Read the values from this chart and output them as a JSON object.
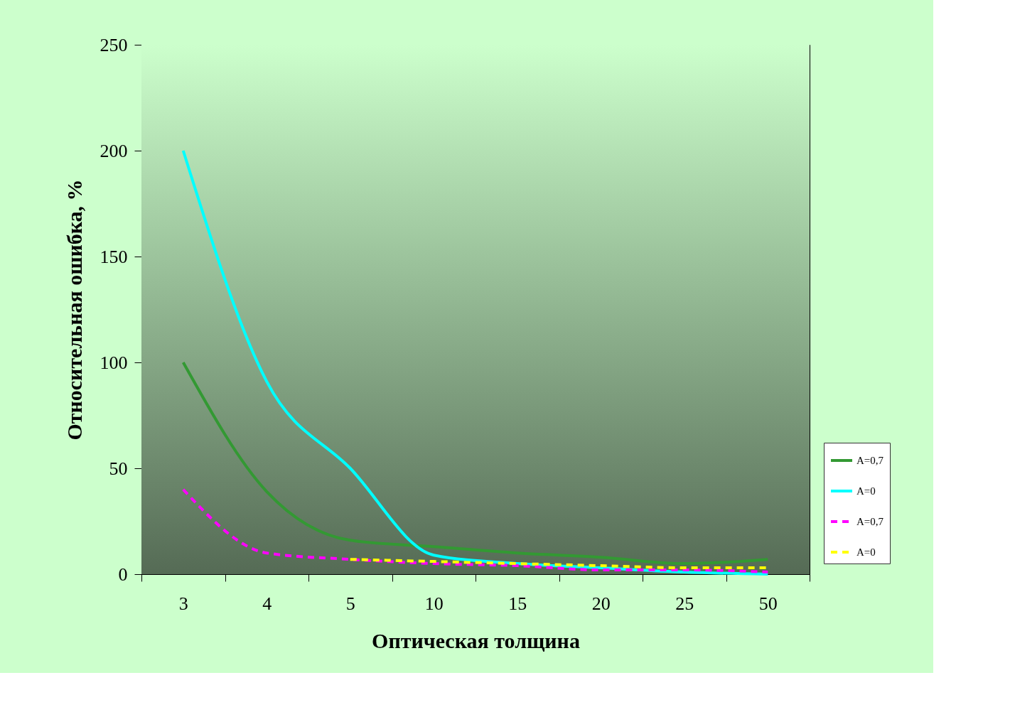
{
  "chart_data": {
    "type": "line",
    "xlabel": "Оптическая толщина",
    "ylabel": "Относительная ошибка, %",
    "categories": [
      "3",
      "4",
      "5",
      "10",
      "15",
      "20",
      "25",
      "50"
    ],
    "ylim": [
      0,
      250
    ],
    "yticks": [
      0,
      50,
      100,
      150,
      200,
      250
    ],
    "grid": false,
    "legend": "right",
    "marker": "none",
    "series": [
      {
        "name": "A=0,7",
        "color": "#339933",
        "line_style": "solid",
        "values": [
          100,
          39,
          16,
          13,
          10,
          8,
          5,
          7
        ]
      },
      {
        "name": "A=0",
        "color": "#00ffff",
        "line_style": "solid",
        "values": [
          200,
          91,
          50,
          9,
          5,
          3,
          1,
          0
        ]
      },
      {
        "name": "A=0,7",
        "color": "#ff00ff",
        "line_style": "dashed",
        "values": [
          40,
          10,
          7,
          5,
          4,
          2,
          2,
          1
        ]
      },
      {
        "name": "A=0",
        "color": "#ffff00",
        "line_style": "dashed",
        "values": [
          null,
          null,
          7,
          6,
          5,
          4,
          3,
          3
        ]
      }
    ]
  }
}
